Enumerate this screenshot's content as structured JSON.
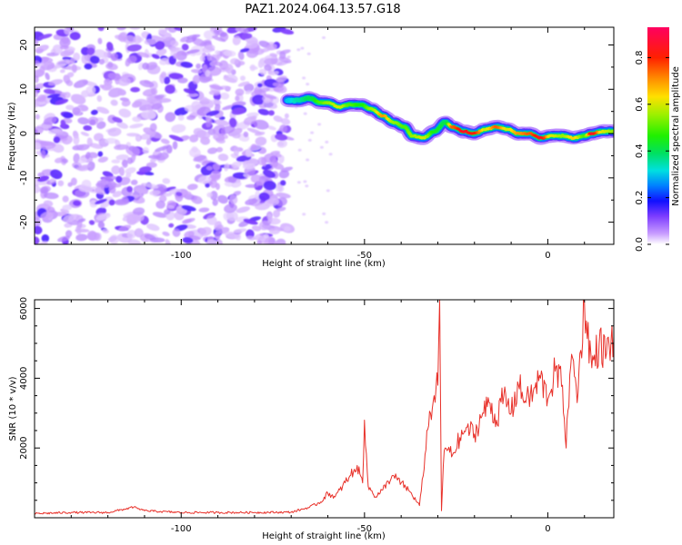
{
  "title": "PAZ1.2024.064.13.57.G18",
  "chart_data": [
    {
      "type": "heatmap",
      "xlabel": "Height of straight line (km)",
      "ylabel": "Frequency (Hz)",
      "xlim": [
        -140,
        18
      ],
      "ylim": [
        -25,
        24
      ],
      "xticks": [
        -100,
        -50,
        0
      ],
      "yticks": [
        -20,
        -10,
        0,
        10,
        20
      ],
      "colorbar": {
        "label": "Normalized spectral amplitude",
        "ticks": [
          0.0,
          0.2,
          0.4,
          0.6,
          0.8
        ],
        "range": [
          0,
          0.93
        ]
      },
      "noise_region": {
        "x_range": [
          -140,
          -71
        ],
        "freq_range": [
          -25,
          24
        ],
        "amplitude_range": [
          0.0,
          0.15
        ]
      },
      "ridge": [
        {
          "x": -71,
          "freq": 7.5,
          "amp": 0.3
        },
        {
          "x": -68,
          "freq": 7.5,
          "amp": 0.35
        },
        {
          "x": -65,
          "freq": 8.0,
          "amp": 0.4
        },
        {
          "x": -62,
          "freq": 7.0,
          "amp": 0.5
        },
        {
          "x": -60,
          "freq": 7.0,
          "amp": 0.55
        },
        {
          "x": -57,
          "freq": 6.0,
          "amp": 0.6
        },
        {
          "x": -54,
          "freq": 6.5,
          "amp": 0.5
        },
        {
          "x": -51,
          "freq": 6.5,
          "amp": 0.45
        },
        {
          "x": -48,
          "freq": 5.5,
          "amp": 0.55
        },
        {
          "x": -45,
          "freq": 4.0,
          "amp": 0.7
        },
        {
          "x": -42,
          "freq": 2.5,
          "amp": 0.55
        },
        {
          "x": -39,
          "freq": 1.5,
          "amp": 0.5
        },
        {
          "x": -37,
          "freq": -0.5,
          "amp": 0.55
        },
        {
          "x": -34,
          "freq": -1.0,
          "amp": 0.6
        },
        {
          "x": -31,
          "freq": 0.5,
          "amp": 0.45
        },
        {
          "x": -28,
          "freq": 2.5,
          "amp": 0.4
        },
        {
          "x": -26,
          "freq": 1.5,
          "amp": 0.75
        },
        {
          "x": -23,
          "freq": 0.5,
          "amp": 0.85
        },
        {
          "x": -20,
          "freq": 0.0,
          "amp": 0.8
        },
        {
          "x": -17,
          "freq": 1.0,
          "amp": 0.6
        },
        {
          "x": -14,
          "freq": 1.5,
          "amp": 0.75
        },
        {
          "x": -11,
          "freq": 1.0,
          "amp": 0.6
        },
        {
          "x": -8,
          "freq": 0.0,
          "amp": 0.7
        },
        {
          "x": -5,
          "freq": 0.0,
          "amp": 0.75
        },
        {
          "x": -2,
          "freq": -1.0,
          "amp": 0.85
        },
        {
          "x": 1,
          "freq": -0.5,
          "amp": 0.6
        },
        {
          "x": 4,
          "freq": -0.5,
          "amp": 0.55
        },
        {
          "x": 7,
          "freq": -1.0,
          "amp": 0.65
        },
        {
          "x": 10,
          "freq": -0.5,
          "amp": 0.5
        },
        {
          "x": 12,
          "freq": 0.0,
          "amp": 0.85
        },
        {
          "x": 15,
          "freq": 0.5,
          "amp": 0.6
        },
        {
          "x": 18,
          "freq": 0.5,
          "amp": 0.55
        }
      ]
    },
    {
      "type": "line",
      "xlabel": "Height of straight line (km)",
      "ylabel": "SNR (10 * v/v)",
      "xlim": [
        -140,
        18
      ],
      "ylim": [
        0,
        6250
      ],
      "xticks": [
        -100,
        -50,
        0
      ],
      "yticks": [
        2000,
        4000,
        6000
      ],
      "color": "#e8312a",
      "series": [
        {
          "x": [
            -140,
            -130,
            -120,
            -113,
            -110,
            -100,
            -90,
            -80,
            -70,
            -65,
            -62,
            -60,
            -58,
            -56,
            -54,
            -52,
            -50.5,
            -50,
            -49,
            -47,
            -45,
            -44,
            -42,
            -40,
            -38,
            -36,
            -35,
            -34,
            -33,
            -32,
            -31,
            -30,
            -29.5,
            -29,
            -28.5,
            -28,
            -26,
            -24,
            -22,
            -20,
            -18,
            -16,
            -14,
            -12,
            -10,
            -8,
            -6,
            -4,
            -2,
            0,
            2,
            4,
            5,
            6,
            7,
            8,
            9,
            10,
            12,
            14,
            16,
            18
          ],
          "y": [
            120,
            150,
            150,
            300,
            200,
            150,
            150,
            150,
            160,
            300,
            450,
            700,
            600,
            900,
            1200,
            1500,
            1000,
            2800,
            900,
            600,
            800,
            1000,
            1200,
            1000,
            800,
            500,
            350,
            1200,
            2500,
            3000,
            3500,
            3800,
            6250,
            200,
            1500,
            2000,
            1800,
            2300,
            2600,
            2400,
            2900,
            3300,
            2800,
            3500,
            3000,
            3800,
            3300,
            3600,
            4000,
            3400,
            4200,
            3800,
            2000,
            4100,
            4500,
            3300,
            4800,
            6200,
            4300,
            5000,
            4700,
            5200
          ]
        }
      ]
    }
  ]
}
